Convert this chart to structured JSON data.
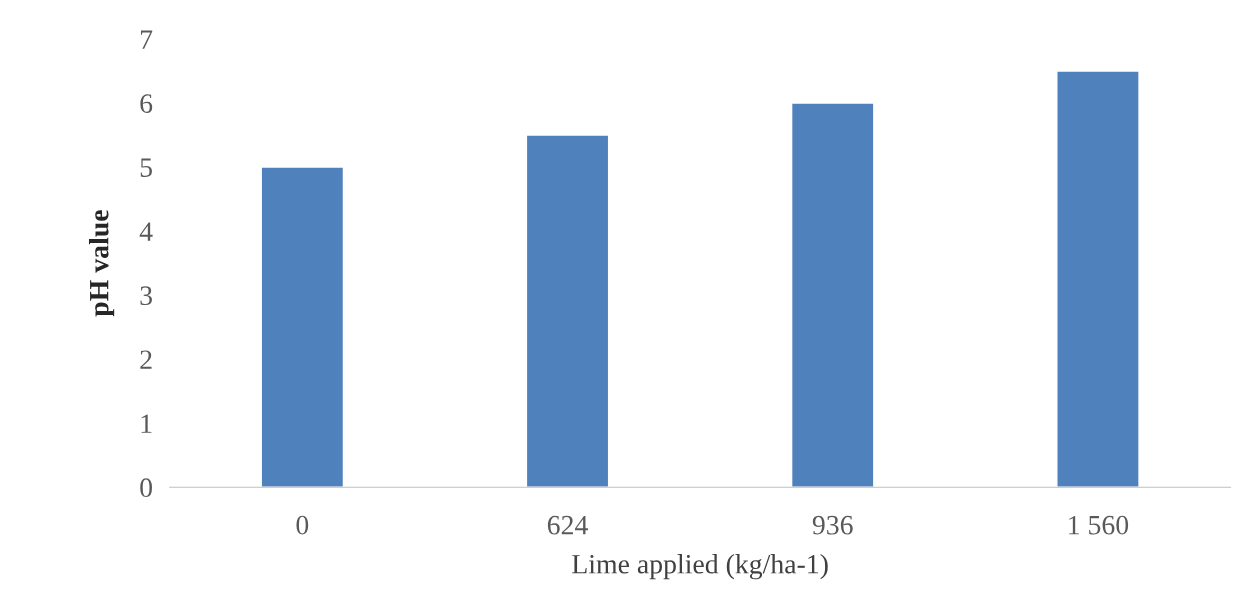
{
  "chart_data": {
    "type": "bar",
    "xlabel": "Lime applied (kg/ha-1)",
    "ylabel": "pH value",
    "categories": [
      "0",
      "624",
      "936",
      "1 560"
    ],
    "values": [
      5,
      5.5,
      6,
      6.5
    ],
    "color": "#4f81bd",
    "ylim": [
      0,
      7
    ],
    "yticks": [
      0,
      1,
      2,
      3,
      4,
      5,
      6,
      7
    ],
    "grid": false,
    "legend": false
  }
}
